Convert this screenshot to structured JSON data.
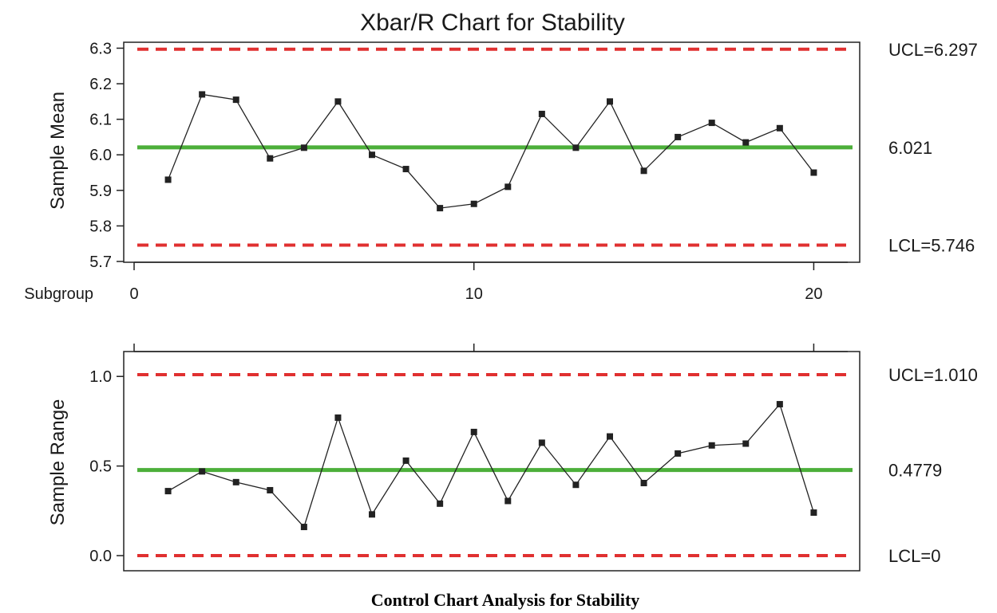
{
  "chart_data": [
    {
      "type": "line",
      "title": "Xbar/R Chart for Stability",
      "xlabel": "Subgroup",
      "ylabel": "Sample Mean",
      "x": [
        1,
        2,
        3,
        4,
        5,
        6,
        7,
        8,
        9,
        10,
        11,
        12,
        13,
        14,
        15,
        16,
        17,
        18,
        19,
        20
      ],
      "values": [
        5.93,
        6.17,
        6.155,
        5.99,
        6.02,
        6.15,
        6.0,
        5.96,
        5.85,
        5.862,
        5.91,
        6.115,
        6.02,
        6.15,
        5.955,
        6.05,
        6.09,
        6.035,
        6.075,
        5.95
      ],
      "xticks": [
        "0",
        "10",
        "20"
      ],
      "yticks": [
        "5.7",
        "5.8",
        "5.9",
        "6.0",
        "6.1",
        "6.2",
        "6.3"
      ],
      "xlim": [
        0,
        21
      ],
      "ylim": [
        5.7,
        6.31
      ],
      "center_line": 6.021,
      "ucl": 6.297,
      "lcl": 5.746,
      "labels": {
        "ucl": "UCL=6.297",
        "center": "6.021",
        "lcl": "LCL=5.746"
      },
      "grid": false
    },
    {
      "type": "line",
      "ylabel": "Sample Range",
      "x": [
        1,
        2,
        3,
        4,
        5,
        6,
        7,
        8,
        9,
        10,
        11,
        12,
        13,
        14,
        15,
        16,
        17,
        18,
        19,
        20
      ],
      "values": [
        0.36,
        0.47,
        0.41,
        0.365,
        0.16,
        0.77,
        0.23,
        0.53,
        0.29,
        0.69,
        0.305,
        0.63,
        0.395,
        0.665,
        0.405,
        0.57,
        0.615,
        0.625,
        0.845,
        0.24
      ],
      "yticks": [
        "0.0",
        "0.5",
        "1.0"
      ],
      "xlim": [
        0,
        21
      ],
      "ylim": [
        -0.08,
        1.13
      ],
      "center_line": 0.4779,
      "ucl": 1.01,
      "lcl": 0,
      "labels": {
        "ucl": "UCL=1.010",
        "center": "0.4779",
        "lcl": "LCL=0"
      },
      "grid": false
    }
  ],
  "caption": "Control Chart Analysis for Stability",
  "colors": {
    "control_limit": "#e03030",
    "center_line": "#4caf3a",
    "data": "#222222"
  }
}
